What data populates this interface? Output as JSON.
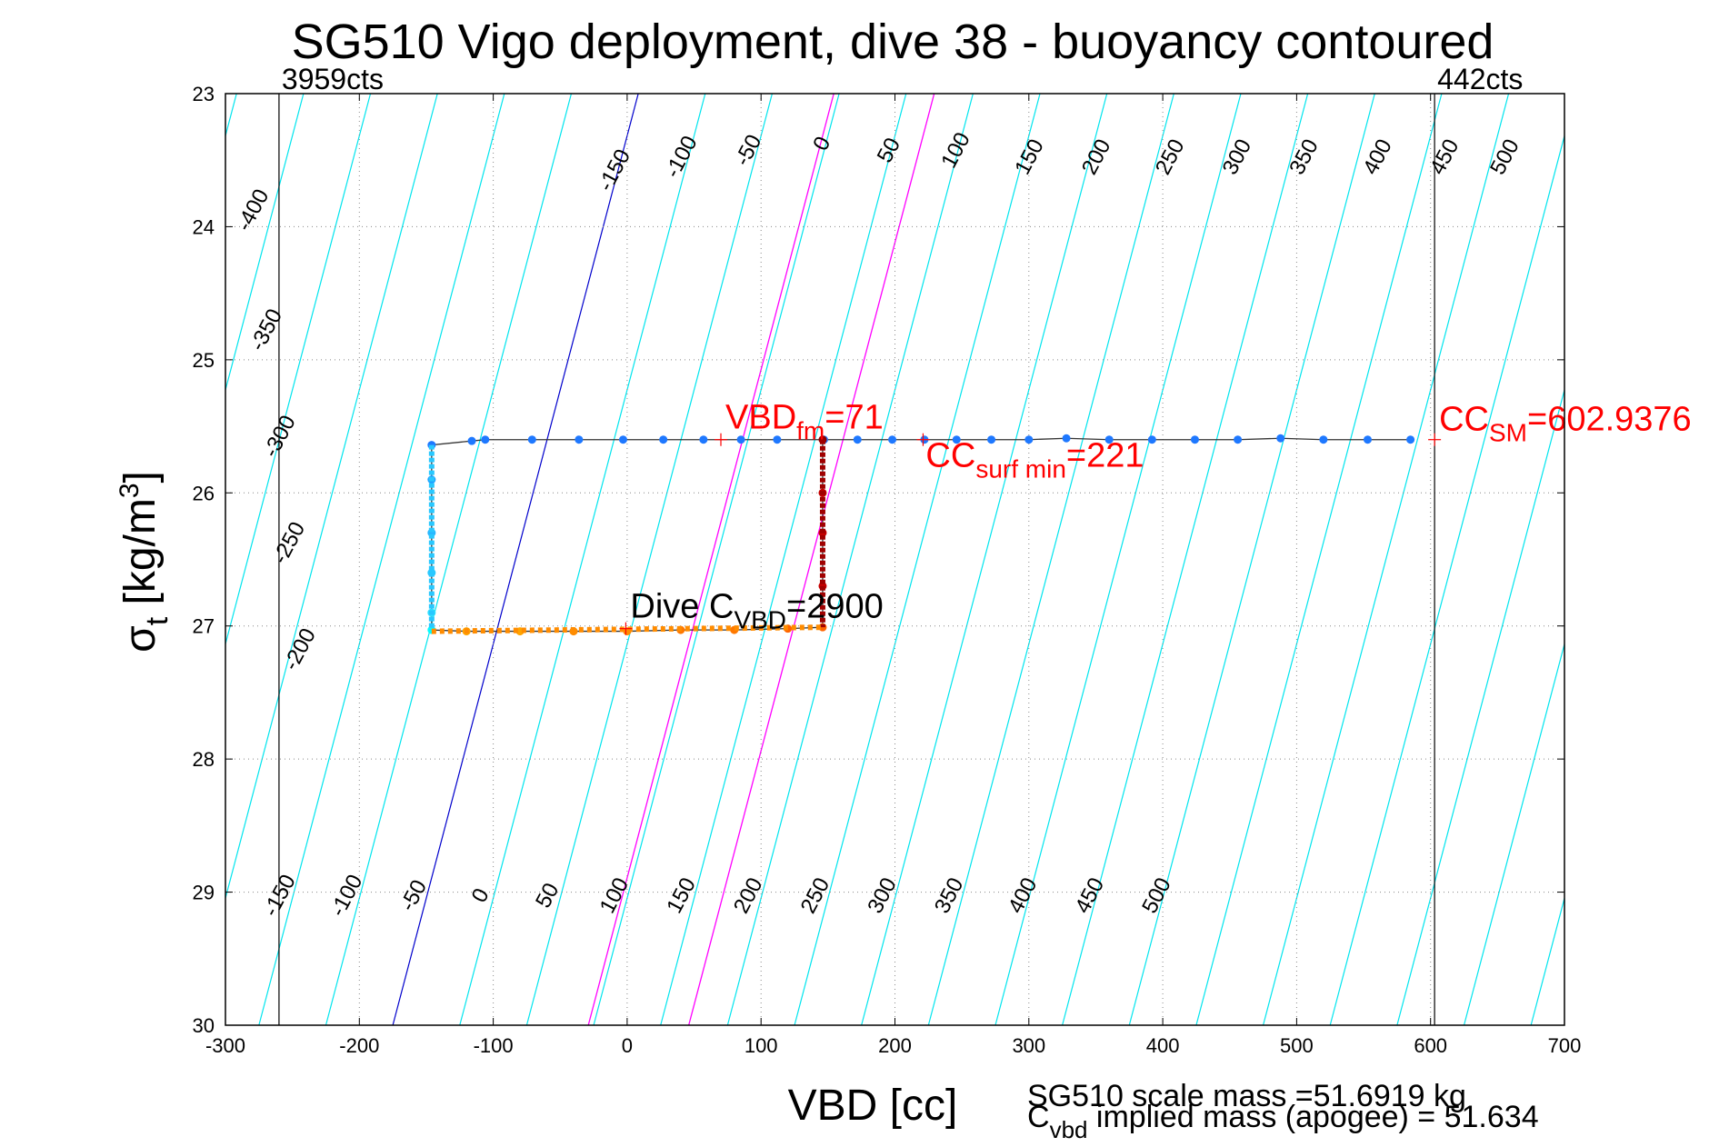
{
  "chart_data": {
    "type": "line",
    "title": "SG510 Vigo deployment, dive 38 - buoyancy contoured",
    "xlabel": "VBD [cc]",
    "ylabel": {
      "main": "σ",
      "sub": "t",
      "unit": " [kg/m",
      "sup": "3",
      "close": "]"
    },
    "xlim": [
      -300,
      700
    ],
    "ylim": [
      23,
      30
    ],
    "y_reversed": true,
    "grid": true,
    "x_ticks": [
      "-300",
      "-200",
      "-100",
      "0",
      "100",
      "200",
      "300",
      "400",
      "500",
      "600",
      "700"
    ],
    "y_ticks": [
      "23",
      "24",
      "25",
      "26",
      "27",
      "28",
      "29",
      "30"
    ],
    "contour_labels_top": [
      "-400",
      "-350",
      "-300",
      "-250",
      "-200",
      "-150",
      "-100",
      "-50",
      "0",
      "50",
      "100",
      "150",
      "200",
      "250",
      "300",
      "350",
      "400",
      "450",
      "500"
    ],
    "contour_labels_bottom": [
      "-150",
      "-100",
      "-50",
      "0",
      "50",
      "100",
      "150",
      "200",
      "250",
      "300",
      "350",
      "400",
      "450",
      "500"
    ],
    "reference_lines": [
      {
        "x": -260,
        "label": "3959cts"
      },
      {
        "x": 603,
        "label": "442cts"
      }
    ],
    "dive_track": [
      {
        "x": 585,
        "y": 25.6
      },
      {
        "x": 553,
        "y": 25.6
      },
      {
        "x": 520,
        "y": 25.6
      },
      {
        "x": 488,
        "y": 25.59
      },
      {
        "x": 456,
        "y": 25.6
      },
      {
        "x": 424,
        "y": 25.6
      },
      {
        "x": 392,
        "y": 25.6
      },
      {
        "x": 360,
        "y": 25.6
      },
      {
        "x": 328,
        "y": 25.59
      },
      {
        "x": 300,
        "y": 25.6
      },
      {
        "x": 272,
        "y": 25.6
      },
      {
        "x": 246,
        "y": 25.6
      },
      {
        "x": 222,
        "y": 25.6
      },
      {
        "x": 198,
        "y": 25.6
      },
      {
        "x": 172,
        "y": 25.6
      },
      {
        "x": 147,
        "y": 25.6
      },
      {
        "x": 112,
        "y": 25.6
      },
      {
        "x": 85,
        "y": 25.6
      },
      {
        "x": 57,
        "y": 25.6
      },
      {
        "x": 27,
        "y": 25.6
      },
      {
        "x": -3,
        "y": 25.6
      },
      {
        "x": -36,
        "y": 25.6
      },
      {
        "x": -71,
        "y": 25.6
      },
      {
        "x": -106,
        "y": 25.6
      },
      {
        "x": -116,
        "y": 25.61
      },
      {
        "x": -146,
        "y": 25.64
      },
      {
        "x": -146,
        "y": 25.9
      },
      {
        "x": -146,
        "y": 26.3
      },
      {
        "x": -146,
        "y": 26.6
      },
      {
        "x": -146,
        "y": 26.9
      },
      {
        "x": -146,
        "y": 27.03
      },
      {
        "x": -120,
        "y": 27.04
      },
      {
        "x": -80,
        "y": 27.04
      },
      {
        "x": -40,
        "y": 27.04
      },
      {
        "x": 0,
        "y": 27.04
      },
      {
        "x": 40,
        "y": 27.03
      },
      {
        "x": 80,
        "y": 27.03
      },
      {
        "x": 120,
        "y": 27.02
      },
      {
        "x": 146,
        "y": 27.01
      },
      {
        "x": 146,
        "y": 26.7
      },
      {
        "x": 146,
        "y": 26.3
      },
      {
        "x": 146,
        "y": 26.0
      },
      {
        "x": 146,
        "y": 25.6
      }
    ],
    "markers": [
      {
        "x": 603,
        "y": 25.6,
        "main": "CC",
        "sub": "SM",
        "rest": "=602.9376"
      },
      {
        "x": 70,
        "y": 25.6,
        "main": "VBD",
        "sub": "fm",
        "rest": "=71"
      },
      {
        "x": 221,
        "y": 25.6,
        "main": "CC",
        "sub": "surf min",
        "rest": "=221"
      },
      {
        "x": -1,
        "y": 27.02,
        "main": "Dive C",
        "sub": "VBD",
        "rest": "=2900"
      }
    ],
    "footer": {
      "scale_mass": "SG510 scale mass =51.6919 kg",
      "implied_main": "C",
      "implied_sub": "vbd",
      "implied_rest": " implied mass (apogee) = 51.634"
    },
    "colors": {
      "contour": "#00e5ee",
      "zero_contour": "#0000cc",
      "highlight_contour": "#ff00ff",
      "annotation": "#ff0000",
      "track_line": "#333333",
      "ref_line": "#000000"
    }
  }
}
